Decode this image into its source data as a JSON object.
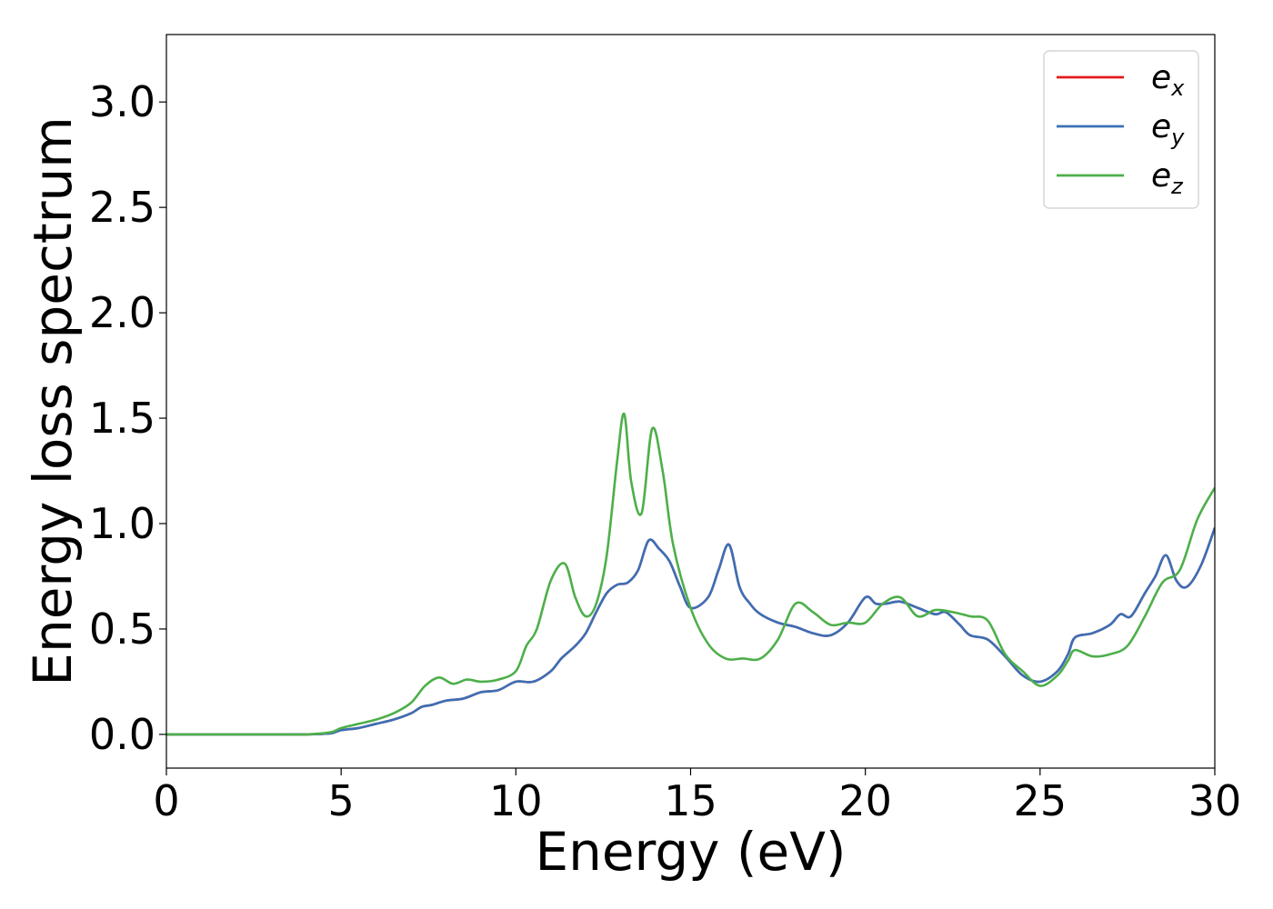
{
  "chart_data": {
    "type": "line",
    "title": "",
    "xlabel": "Energy (eV)",
    "ylabel": "Energy loss spectrum",
    "xlim": [
      0,
      30
    ],
    "ylim": [
      -0.16,
      3.32
    ],
    "xticks": [
      0,
      5,
      10,
      15,
      20,
      25,
      30
    ],
    "xtick_labels": [
      "0",
      "5",
      "10",
      "15",
      "20",
      "25",
      "30"
    ],
    "yticks": [
      0.0,
      0.5,
      1.0,
      1.5,
      2.0,
      2.5,
      3.0
    ],
    "ytick_labels": [
      "0.0",
      "0.5",
      "1.0",
      "1.5",
      "2.0",
      "2.5",
      "3.0"
    ],
    "grid": false,
    "legend_position": "top-right",
    "series": [
      {
        "name": "e",
        "subscript": "x",
        "color": "#e41a1c",
        "x": [
          0,
          1,
          2,
          3,
          4,
          4.7,
          5,
          5.5,
          6,
          6.5,
          7,
          7.3,
          7.6,
          8,
          8.5,
          9,
          9.5,
          10,
          10.5,
          11,
          11.3,
          11.7,
          12,
          12.3,
          12.6,
          12.9,
          13.2,
          13.5,
          13.8,
          14.1,
          14.4,
          14.7,
          15,
          15.5,
          15.8,
          16.1,
          16.4,
          16.7,
          17,
          17.5,
          18,
          18.5,
          19,
          19.5,
          20,
          20.3,
          20.6,
          21,
          21.5,
          22,
          22.3,
          22.7,
          23,
          23.5,
          24,
          24.5,
          25,
          25.5,
          25.8,
          26,
          26.5,
          27,
          27.3,
          27.6,
          28,
          28.3,
          28.6,
          28.9,
          29.2,
          29.6,
          30
        ],
        "values": [
          0,
          0,
          0,
          0,
          0,
          0.005,
          0.02,
          0.03,
          0.05,
          0.07,
          0.1,
          0.13,
          0.14,
          0.16,
          0.17,
          0.2,
          0.21,
          0.25,
          0.25,
          0.3,
          0.36,
          0.42,
          0.48,
          0.58,
          0.67,
          0.71,
          0.72,
          0.78,
          0.92,
          0.88,
          0.82,
          0.7,
          0.6,
          0.65,
          0.78,
          0.9,
          0.7,
          0.62,
          0.57,
          0.53,
          0.51,
          0.48,
          0.47,
          0.53,
          0.65,
          0.62,
          0.62,
          0.63,
          0.6,
          0.57,
          0.58,
          0.52,
          0.47,
          0.45,
          0.37,
          0.28,
          0.25,
          0.3,
          0.38,
          0.46,
          0.48,
          0.52,
          0.57,
          0.56,
          0.67,
          0.75,
          0.85,
          0.73,
          0.7,
          0.8,
          0.98
        ]
      },
      {
        "name": "e",
        "subscript": "y",
        "color": "#3a70b6",
        "x": [
          0,
          1,
          2,
          3,
          4,
          4.7,
          5,
          5.5,
          6,
          6.5,
          7,
          7.3,
          7.6,
          8,
          8.5,
          9,
          9.5,
          10,
          10.5,
          11,
          11.3,
          11.7,
          12,
          12.3,
          12.6,
          12.9,
          13.2,
          13.5,
          13.8,
          14.1,
          14.4,
          14.7,
          15,
          15.5,
          15.8,
          16.1,
          16.4,
          16.7,
          17,
          17.5,
          18,
          18.5,
          19,
          19.5,
          20,
          20.3,
          20.6,
          21,
          21.5,
          22,
          22.3,
          22.7,
          23,
          23.5,
          24,
          24.5,
          25,
          25.5,
          25.8,
          26,
          26.5,
          27,
          27.3,
          27.6,
          28,
          28.3,
          28.6,
          28.9,
          29.2,
          29.6,
          30
        ],
        "values": [
          0,
          0,
          0,
          0,
          0,
          0.005,
          0.02,
          0.03,
          0.05,
          0.07,
          0.1,
          0.13,
          0.14,
          0.16,
          0.17,
          0.2,
          0.21,
          0.25,
          0.25,
          0.3,
          0.36,
          0.42,
          0.48,
          0.58,
          0.67,
          0.71,
          0.72,
          0.78,
          0.92,
          0.88,
          0.82,
          0.7,
          0.6,
          0.65,
          0.78,
          0.9,
          0.7,
          0.62,
          0.57,
          0.53,
          0.51,
          0.48,
          0.47,
          0.53,
          0.65,
          0.62,
          0.62,
          0.63,
          0.6,
          0.57,
          0.58,
          0.52,
          0.47,
          0.45,
          0.37,
          0.28,
          0.25,
          0.3,
          0.38,
          0.46,
          0.48,
          0.52,
          0.57,
          0.56,
          0.67,
          0.75,
          0.85,
          0.73,
          0.7,
          0.8,
          0.98
        ]
      },
      {
        "name": "e",
        "subscript": "z",
        "color": "#4daf4a",
        "x": [
          0,
          1,
          2,
          3,
          4,
          4.7,
          5,
          5.5,
          6,
          6.5,
          7,
          7.4,
          7.8,
          8.2,
          8.6,
          9,
          9.5,
          10,
          10.3,
          10.6,
          11,
          11.4,
          11.7,
          12,
          12.3,
          12.6,
          12.9,
          13.1,
          13.3,
          13.6,
          13.9,
          14.2,
          14.5,
          15,
          15.5,
          16,
          16.5,
          17,
          17.5,
          18,
          18.5,
          19,
          19.5,
          20,
          20.5,
          21,
          21.5,
          22,
          22.5,
          23,
          23.5,
          24,
          24.5,
          25,
          25.5,
          25.8,
          26,
          26.5,
          27,
          27.5,
          28,
          28.5,
          29,
          29.5,
          30
        ],
        "values": [
          0,
          0,
          0,
          0,
          0,
          0.01,
          0.03,
          0.05,
          0.07,
          0.1,
          0.15,
          0.23,
          0.27,
          0.24,
          0.26,
          0.25,
          0.26,
          0.3,
          0.42,
          0.5,
          0.73,
          0.81,
          0.65,
          0.56,
          0.62,
          0.85,
          1.3,
          1.52,
          1.2,
          1.05,
          1.45,
          1.25,
          0.9,
          0.6,
          0.43,
          0.36,
          0.36,
          0.36,
          0.45,
          0.62,
          0.58,
          0.52,
          0.53,
          0.53,
          0.62,
          0.65,
          0.56,
          0.59,
          0.58,
          0.56,
          0.54,
          0.38,
          0.3,
          0.23,
          0.28,
          0.35,
          0.4,
          0.37,
          0.38,
          0.42,
          0.56,
          0.72,
          0.78,
          1.02,
          1.17
        ]
      }
    ]
  }
}
